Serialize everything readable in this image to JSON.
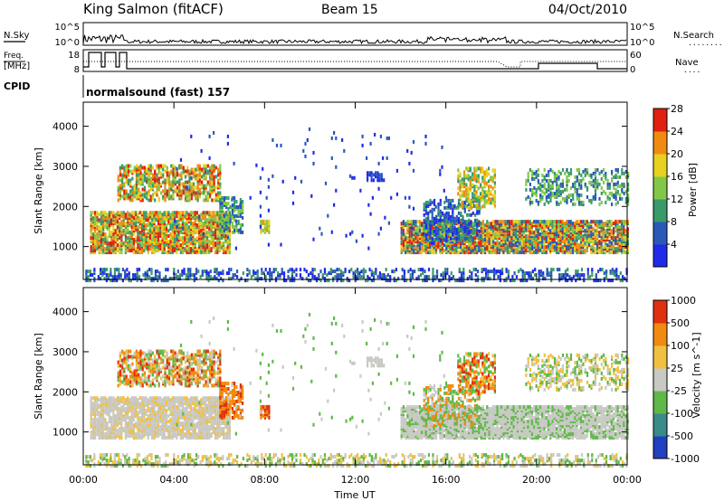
{
  "header": {
    "station": "King Salmon (fitACF)",
    "beam": "Beam 15",
    "date": "04/Oct/2010"
  },
  "top_panel": {
    "left_label": "N.Sky",
    "right_label": "N.Search",
    "right_dots": "........",
    "tick_top": "10^5",
    "tick_bottom": "10^0"
  },
  "freq_panel": {
    "label_line1": "Freq.",
    "label_line2": "[MHz]",
    "tick_top": "18",
    "tick_bottom": "8",
    "right_tick_top": "60",
    "right_tick_bottom": "0",
    "right_label": "Nave",
    "right_dots": "...."
  },
  "cpid": {
    "label": "CPID",
    "program": "normalsound (fast) 157"
  },
  "time_axis": {
    "title": "Time UT",
    "ticks": [
      "00:00",
      "04:00",
      "08:00",
      "12:00",
      "16:00",
      "20:00",
      "00:00"
    ]
  },
  "power_scale": {
    "label": "Power [dB]",
    "ticks": [
      "4",
      "8",
      "12",
      "16",
      "20",
      "24",
      "28"
    ],
    "colors": [
      "#1f2be8",
      "#2a58b8",
      "#3a9a6a",
      "#82c848",
      "#e8d020",
      "#f08a10",
      "#e02010"
    ]
  },
  "velocity_scale": {
    "label": "Velocity [m s^-1]",
    "ticks": [
      "1000",
      "500",
      "100",
      "25",
      "-25",
      "-100",
      "-500",
      "-1000"
    ],
    "colors": [
      "#2040c0",
      "#3a8a88",
      "#5fb848",
      "#c8c8c4",
      "#f0c040",
      "#f08a10",
      "#e03010"
    ]
  },
  "chart_data": [
    {
      "type": "heatmap",
      "title": "Power",
      "ylabel": "Slant Range [km]",
      "xlabel": "",
      "y_ticks": [
        "1000",
        "2000",
        "3000",
        "4000"
      ],
      "ylim": [
        180,
        4600
      ],
      "xlim_hours": [
        0,
        24
      ],
      "colorbar_label": "Power [dB]"
    },
    {
      "type": "heatmap",
      "title": "Velocity",
      "ylabel": "Slant Range [km]",
      "xlabel": "Time UT",
      "y_ticks": [
        "1000",
        "2000",
        "3000",
        "4000"
      ],
      "ylim": [
        180,
        4600
      ],
      "xlim_hours": [
        0,
        24
      ],
      "colorbar_label": "Velocity [m s^-1]"
    }
  ]
}
